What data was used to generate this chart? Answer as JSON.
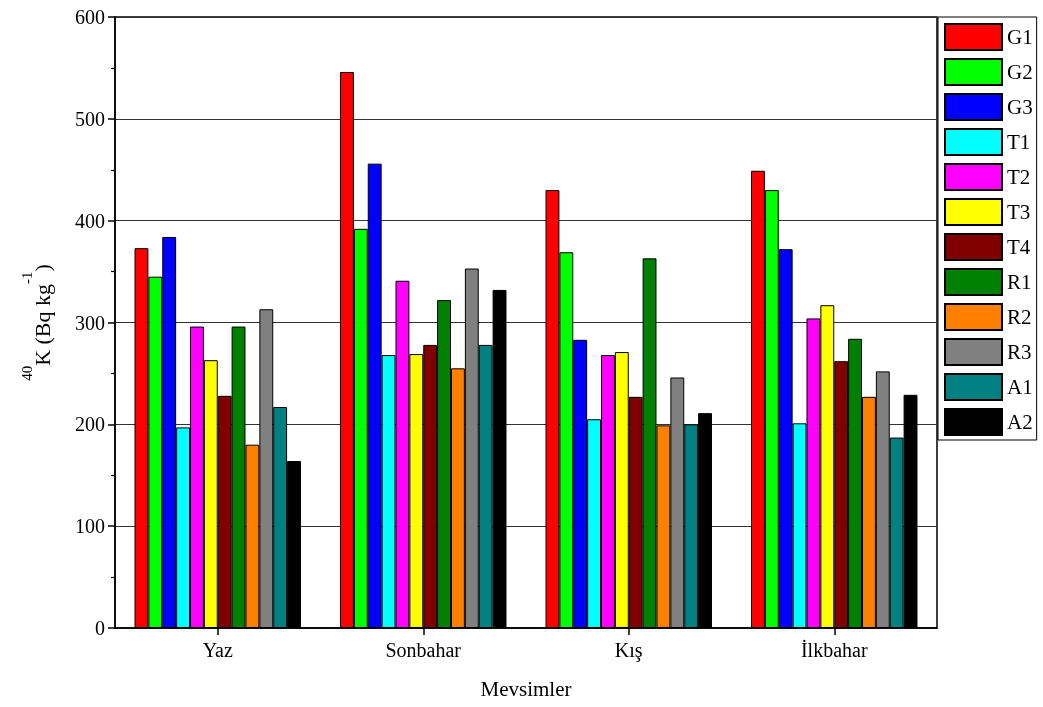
{
  "chart_data": {
    "type": "bar",
    "xlabel": "Mevsimler",
    "ylabel": "$^{40}$K (Bq kg$^{-1}$)",
    "categories": [
      "Yaz",
      "Sonbahar",
      "Kış",
      "İlkbahar"
    ],
    "series": [
      {
        "name": "G1",
        "color": "#ff0000",
        "values": [
          373,
          546,
          430,
          449
        ]
      },
      {
        "name": "G2",
        "color": "#00ff00",
        "values": [
          345,
          392,
          369,
          430
        ]
      },
      {
        "name": "G3",
        "color": "#0000ff",
        "values": [
          384,
          456,
          283,
          372
        ]
      },
      {
        "name": "T1",
        "color": "#00ffff",
        "values": [
          197,
          268,
          205,
          201
        ]
      },
      {
        "name": "T2",
        "color": "#ff00ff",
        "values": [
          296,
          341,
          268,
          304
        ]
      },
      {
        "name": "T3",
        "color": "#ffff00",
        "values": [
          263,
          269,
          271,
          317
        ]
      },
      {
        "name": "T4",
        "color": "#800000",
        "values": [
          228,
          278,
          227,
          262
        ]
      },
      {
        "name": "R1",
        "color": "#008000",
        "values": [
          296,
          322,
          363,
          284
        ]
      },
      {
        "name": "R2",
        "color": "#ff8000",
        "values": [
          180,
          255,
          199,
          227
        ]
      },
      {
        "name": "R3",
        "color": "#808080",
        "values": [
          313,
          353,
          246,
          252
        ]
      },
      {
        "name": "A1",
        "color": "#008080",
        "values": [
          217,
          278,
          200,
          187
        ]
      },
      {
        "name": "A2",
        "color": "#000000",
        "values": [
          164,
          332,
          211,
          229
        ]
      }
    ],
    "ylim": [
      0,
      600
    ],
    "yticks": [
      0,
      100,
      200,
      300,
      400,
      500,
      600
    ],
    "grid": "y",
    "legend": "top right"
  }
}
